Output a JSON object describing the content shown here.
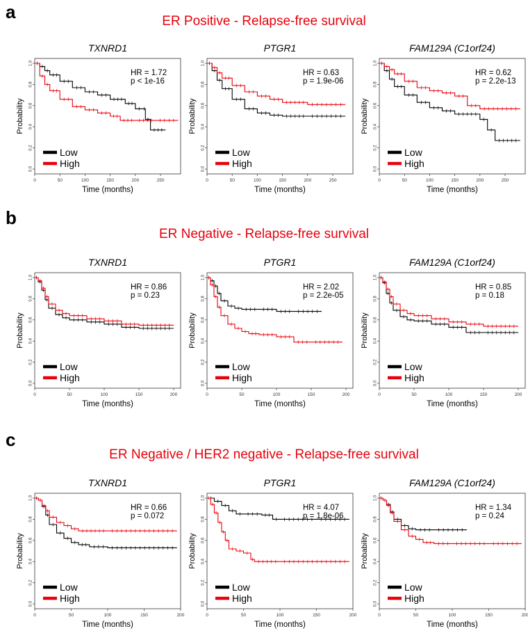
{
  "legend": {
    "low": "Low",
    "high": "High"
  },
  "colors": {
    "low": "#000000",
    "high": "#e8000b"
  },
  "xlabel": "Time (months)",
  "ylabel": "Probability",
  "y_ticks": [
    "0.0",
    "0.2",
    "0.4",
    "0.6",
    "0.8",
    "1.0"
  ],
  "sections": [
    {
      "letter": "a",
      "title": "ER Positive - Relapse-free survival",
      "xlim": [
        0,
        290
      ],
      "x_ticks": [
        "0",
        "50",
        "100",
        "150",
        "200",
        "250"
      ],
      "x_tick_values": [
        0,
        50,
        100,
        150,
        200,
        250
      ]
    },
    {
      "letter": "b",
      "title": "ER Negative - Relapse-free survival",
      "xlim": [
        0,
        210
      ],
      "x_ticks": [
        "0",
        "50",
        "100",
        "150",
        "200"
      ],
      "x_tick_values": [
        0,
        50,
        100,
        150,
        200
      ]
    },
    {
      "letter": "c",
      "title": "ER Negative / HER2 negative - Relapse-free survival",
      "xlim": [
        0,
        200
      ],
      "x_ticks": [
        "0",
        "50",
        "100",
        "150",
        "200"
      ],
      "x_tick_values": [
        0,
        50,
        100,
        150,
        200
      ]
    }
  ],
  "chart_data": [
    {
      "type": "line",
      "section": "a",
      "title": "TXNRD1",
      "hr": "HR = 1.72",
      "p": "p < 1e-16",
      "xlabel": "Time (months)",
      "ylabel": "Probability",
      "xlim": [
        0,
        290
      ],
      "ylim": [
        0,
        1
      ],
      "series": [
        {
          "name": "Low",
          "x": [
            0,
            10,
            20,
            30,
            50,
            75,
            100,
            125,
            150,
            180,
            200,
            215,
            220,
            230,
            260
          ],
          "y": [
            1.0,
            0.97,
            0.93,
            0.89,
            0.83,
            0.77,
            0.73,
            0.7,
            0.66,
            0.62,
            0.57,
            0.57,
            0.47,
            0.37,
            0.37
          ]
        },
        {
          "name": "High",
          "x": [
            0,
            10,
            20,
            30,
            50,
            75,
            100,
            125,
            150,
            170,
            200,
            240,
            285
          ],
          "y": [
            1.0,
            0.88,
            0.8,
            0.74,
            0.66,
            0.59,
            0.56,
            0.53,
            0.5,
            0.46,
            0.46,
            0.46,
            0.46
          ]
        }
      ]
    },
    {
      "type": "line",
      "section": "a",
      "title": "PTGR1",
      "hr": "HR = 0.63",
      "p": "p = 1.9e-06",
      "xlabel": "Time (months)",
      "ylabel": "Probability",
      "xlim": [
        0,
        290
      ],
      "ylim": [
        0,
        1
      ],
      "series": [
        {
          "name": "Low",
          "x": [
            0,
            10,
            20,
            30,
            50,
            75,
            100,
            125,
            150,
            200,
            275
          ],
          "y": [
            1.0,
            0.93,
            0.84,
            0.76,
            0.66,
            0.57,
            0.53,
            0.51,
            0.5,
            0.5,
            0.5
          ]
        },
        {
          "name": "High",
          "x": [
            0,
            10,
            20,
            30,
            50,
            75,
            100,
            125,
            150,
            200,
            275
          ],
          "y": [
            1.0,
            0.96,
            0.91,
            0.86,
            0.79,
            0.73,
            0.69,
            0.66,
            0.63,
            0.61,
            0.61
          ]
        }
      ]
    },
    {
      "type": "line",
      "section": "a",
      "title": "FAM129A (C1orf24)",
      "hr": "HR = 0.62",
      "p": "p = 2.2e-13",
      "xlabel": "Time (months)",
      "ylabel": "Probability",
      "xlim": [
        0,
        290
      ],
      "ylim": [
        0,
        1
      ],
      "series": [
        {
          "name": "Low",
          "x": [
            0,
            10,
            20,
            30,
            50,
            75,
            100,
            125,
            150,
            200,
            215,
            230,
            280
          ],
          "y": [
            1.0,
            0.93,
            0.85,
            0.78,
            0.7,
            0.63,
            0.58,
            0.55,
            0.52,
            0.47,
            0.37,
            0.27,
            0.27
          ]
        },
        {
          "name": "High",
          "x": [
            0,
            10,
            20,
            30,
            50,
            75,
            100,
            125,
            150,
            175,
            200,
            280
          ],
          "y": [
            1.0,
            0.97,
            0.94,
            0.9,
            0.83,
            0.77,
            0.74,
            0.72,
            0.69,
            0.6,
            0.57,
            0.57
          ]
        }
      ]
    },
    {
      "type": "line",
      "section": "b",
      "title": "TXNRD1",
      "hr": "HR = 0.86",
      "p": "p = 0.23",
      "xlabel": "Time (months)",
      "ylabel": "Probability",
      "xlim": [
        0,
        210
      ],
      "ylim": [
        0,
        1
      ],
      "series": [
        {
          "name": "Low",
          "x": [
            0,
            5,
            10,
            15,
            20,
            30,
            40,
            50,
            75,
            100,
            125,
            150,
            200
          ],
          "y": [
            1.0,
            0.96,
            0.88,
            0.79,
            0.71,
            0.65,
            0.62,
            0.6,
            0.58,
            0.56,
            0.53,
            0.52,
            0.52
          ]
        },
        {
          "name": "High",
          "x": [
            0,
            5,
            10,
            15,
            20,
            30,
            40,
            50,
            75,
            100,
            125,
            150,
            200
          ],
          "y": [
            1.0,
            0.97,
            0.9,
            0.82,
            0.75,
            0.69,
            0.66,
            0.64,
            0.61,
            0.59,
            0.56,
            0.55,
            0.55
          ]
        }
      ]
    },
    {
      "type": "line",
      "section": "b",
      "title": "PTGR1",
      "hr": "HR = 2.02",
      "p": "p = 2.2e-05",
      "xlabel": "Time (months)",
      "ylabel": "Probability",
      "xlim": [
        0,
        210
      ],
      "ylim": [
        0,
        1
      ],
      "series": [
        {
          "name": "Low",
          "x": [
            0,
            5,
            10,
            15,
            20,
            30,
            40,
            50,
            75,
            100,
            125,
            165
          ],
          "y": [
            1.0,
            0.97,
            0.92,
            0.85,
            0.78,
            0.73,
            0.71,
            0.7,
            0.7,
            0.68,
            0.68,
            0.68
          ]
        },
        {
          "name": "High",
          "x": [
            0,
            5,
            10,
            15,
            20,
            30,
            40,
            50,
            60,
            75,
            100,
            125,
            150,
            195
          ],
          "y": [
            1.0,
            0.93,
            0.82,
            0.72,
            0.64,
            0.56,
            0.52,
            0.49,
            0.47,
            0.46,
            0.44,
            0.39,
            0.39,
            0.39
          ]
        }
      ]
    },
    {
      "type": "line",
      "section": "b",
      "title": "FAM129A (C1orf24)",
      "hr": "HR = 0.85",
      "p": "p = 0.18",
      "xlabel": "Time (months)",
      "ylabel": "Probability",
      "xlim": [
        0,
        210
      ],
      "ylim": [
        0,
        1
      ],
      "series": [
        {
          "name": "Low",
          "x": [
            0,
            5,
            10,
            15,
            20,
            30,
            40,
            50,
            75,
            100,
            125,
            150,
            200
          ],
          "y": [
            1.0,
            0.95,
            0.85,
            0.76,
            0.69,
            0.63,
            0.6,
            0.59,
            0.56,
            0.53,
            0.48,
            0.48,
            0.48
          ]
        },
        {
          "name": "High",
          "x": [
            0,
            5,
            10,
            15,
            20,
            30,
            40,
            50,
            75,
            100,
            125,
            150,
            200
          ],
          "y": [
            1.0,
            0.96,
            0.89,
            0.82,
            0.75,
            0.69,
            0.66,
            0.64,
            0.61,
            0.58,
            0.56,
            0.54,
            0.54
          ]
        }
      ]
    },
    {
      "type": "line",
      "section": "c",
      "title": "TXNRD1",
      "hr": "HR = 0.66",
      "p": "p = 0.072",
      "xlabel": "Time (months)",
      "ylabel": "Probability",
      "xlim": [
        0,
        200
      ],
      "ylim": [
        0,
        1
      ],
      "series": [
        {
          "name": "Low",
          "x": [
            0,
            5,
            10,
            15,
            20,
            30,
            40,
            50,
            60,
            75,
            100,
            195
          ],
          "y": [
            1.0,
            0.98,
            0.92,
            0.84,
            0.75,
            0.67,
            0.62,
            0.58,
            0.56,
            0.54,
            0.53,
            0.53
          ]
        },
        {
          "name": "High",
          "x": [
            0,
            5,
            10,
            15,
            20,
            30,
            40,
            50,
            60,
            100,
            195
          ],
          "y": [
            1.0,
            0.98,
            0.93,
            0.88,
            0.82,
            0.77,
            0.74,
            0.71,
            0.69,
            0.69,
            0.69
          ]
        }
      ]
    },
    {
      "type": "line",
      "section": "c",
      "title": "PTGR1",
      "hr": "HR = 4.07",
      "p": "p = 1.8e-06",
      "xlabel": "Time (months)",
      "ylabel": "Probability",
      "xlim": [
        0,
        200
      ],
      "ylim": [
        0,
        1
      ],
      "series": [
        {
          "name": "Low",
          "x": [
            0,
            10,
            20,
            30,
            40,
            50,
            75,
            90,
            100,
            150,
            195
          ],
          "y": [
            1.0,
            0.97,
            0.93,
            0.88,
            0.85,
            0.85,
            0.84,
            0.8,
            0.8,
            0.8,
            0.8
          ]
        },
        {
          "name": "High",
          "x": [
            0,
            5,
            10,
            15,
            20,
            25,
            30,
            40,
            50,
            60,
            65,
            100,
            195
          ],
          "y": [
            1.0,
            0.94,
            0.86,
            0.77,
            0.68,
            0.6,
            0.52,
            0.5,
            0.48,
            0.42,
            0.4,
            0.4,
            0.4
          ]
        }
      ]
    },
    {
      "type": "line",
      "section": "c",
      "title": "FAM129A (C1orf24)",
      "hr": "HR = 1.34",
      "p": "p = 0.24",
      "xlabel": "Time (months)",
      "ylabel": "Probability",
      "xlim": [
        0,
        200
      ],
      "ylim": [
        0,
        1
      ],
      "series": [
        {
          "name": "Low",
          "x": [
            0,
            5,
            10,
            15,
            20,
            30,
            40,
            50,
            75,
            120
          ],
          "y": [
            1.0,
            0.98,
            0.94,
            0.87,
            0.8,
            0.74,
            0.71,
            0.7,
            0.7,
            0.7
          ]
        },
        {
          "name": "High",
          "x": [
            0,
            5,
            10,
            15,
            20,
            30,
            40,
            50,
            60,
            75,
            100,
            150,
            195
          ],
          "y": [
            1.0,
            0.98,
            0.93,
            0.86,
            0.78,
            0.7,
            0.64,
            0.61,
            0.58,
            0.57,
            0.57,
            0.57,
            0.57
          ]
        }
      ]
    }
  ]
}
